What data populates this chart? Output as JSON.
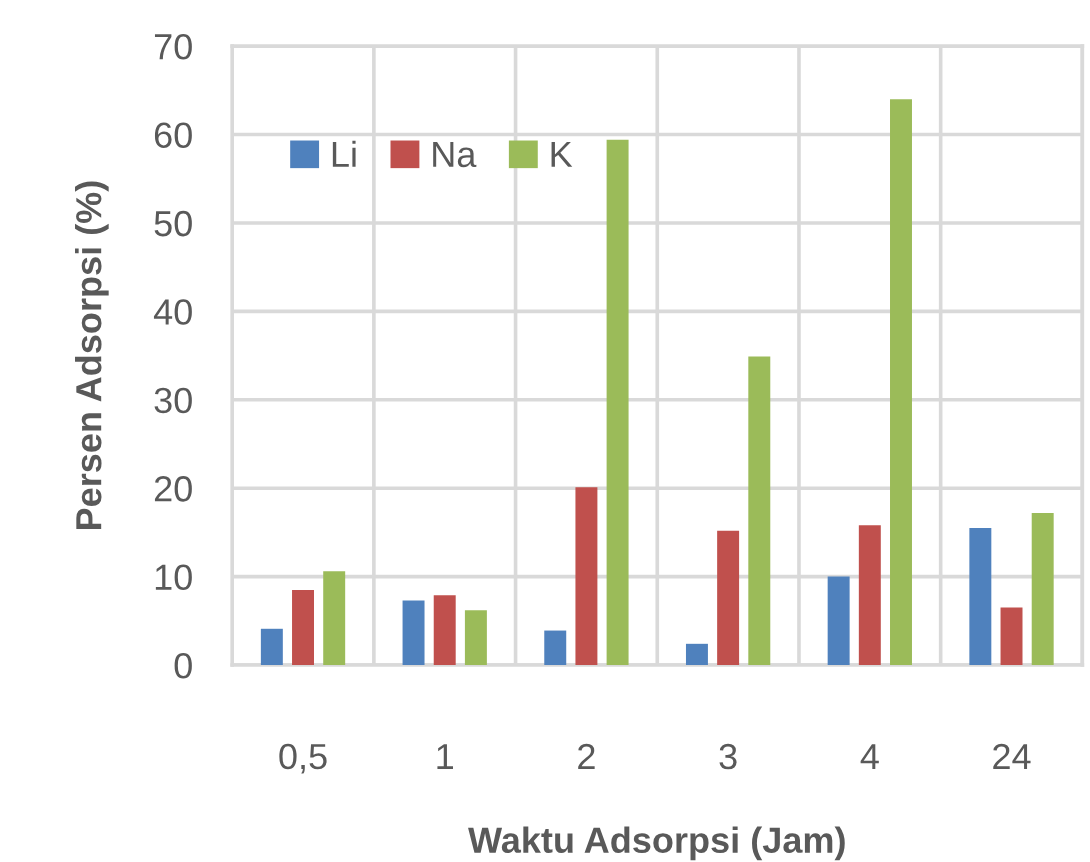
{
  "chart_data": {
    "type": "bar",
    "xlabel": "Waktu Adsorpsi (Jam)",
    "ylabel": "Persen Adsorpsi (%)",
    "categories": [
      "0,5",
      "1",
      "2",
      "3",
      "4",
      "24"
    ],
    "series": [
      {
        "name": "Li",
        "color": "#4f81bd",
        "values": [
          4.1,
          7.3,
          3.9,
          2.4,
          10.0,
          15.5
        ]
      },
      {
        "name": "Na",
        "color": "#c0504d",
        "values": [
          8.5,
          7.9,
          20.1,
          15.2,
          15.8,
          6.5
        ]
      },
      {
        "name": "K",
        "color": "#9bbb59",
        "values": [
          10.6,
          6.2,
          59.4,
          34.9,
          64.0,
          17.2
        ]
      }
    ],
    "ylim": [
      0,
      70
    ],
    "yticks": [
      0,
      10,
      20,
      30,
      40,
      50,
      60,
      70
    ],
    "grid": true,
    "legend": "top left"
  }
}
